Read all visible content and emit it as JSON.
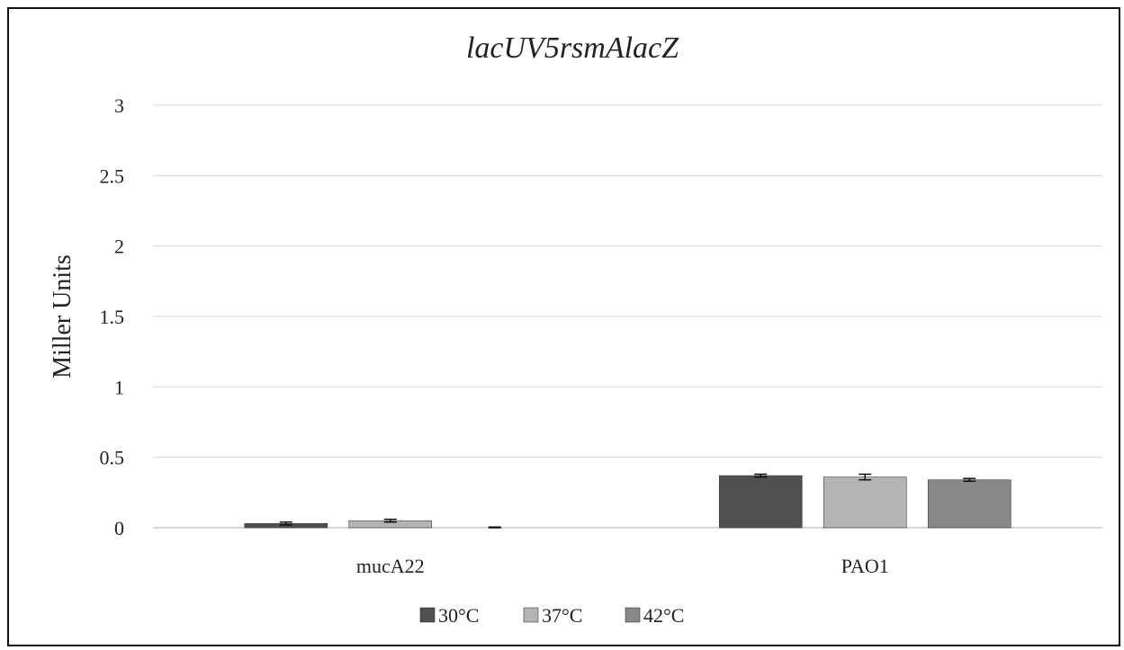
{
  "chart_data": {
    "type": "bar",
    "title": "lacUV5rsmAlacZ",
    "xlabel": "",
    "ylabel": "Miller Units",
    "categories": [
      "mucA22",
      "PAO1"
    ],
    "ylim": [
      0,
      3
    ],
    "yticks": [
      "0",
      "0.5",
      "1",
      "1.5",
      "2",
      "2.5",
      "3"
    ],
    "grid": true,
    "legend_position": "bottom",
    "series": [
      {
        "name": "30°C",
        "color": "#505050",
        "values": [
          0.03,
          0.37
        ],
        "errors": [
          0.01,
          0.01
        ]
      },
      {
        "name": "37°C",
        "color": "#b4b4b4",
        "values": [
          0.05,
          0.36
        ],
        "errors": [
          0.01,
          0.02
        ]
      },
      {
        "name": "42°C",
        "color": "#888888",
        "values": [
          0.0,
          0.34
        ],
        "errors": [
          0.005,
          0.01
        ]
      }
    ]
  }
}
